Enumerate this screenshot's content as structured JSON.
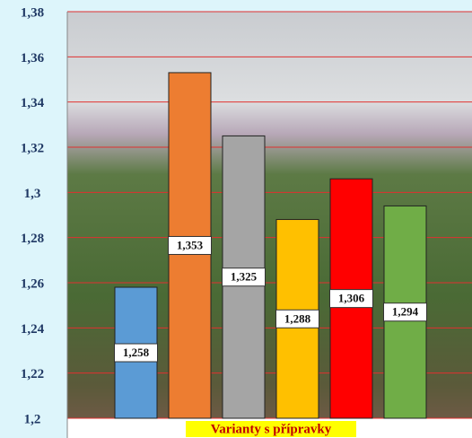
{
  "chart_data": {
    "type": "bar",
    "x_label": "Varianty s přípravky",
    "values": [
      1.258,
      1.353,
      1.325,
      1.288,
      1.306,
      1.294
    ],
    "value_labels": [
      "1,258",
      "1,353",
      "1,325",
      "1,288",
      "1,306",
      "1,294"
    ],
    "colors": [
      "#5b9bd5",
      "#ed7d31",
      "#a5a5a5",
      "#ffc000",
      "#ff0000",
      "#70ad47"
    ],
    "ylim": [
      1.2,
      1.38
    ],
    "yticks": [
      {
        "value": 1.2,
        "label": "1,2"
      },
      {
        "value": 1.22,
        "label": "1,22"
      },
      {
        "value": 1.24,
        "label": "1,24"
      },
      {
        "value": 1.26,
        "label": "1,26"
      },
      {
        "value": 1.28,
        "label": "1,28"
      },
      {
        "value": 1.3,
        "label": "1,3"
      },
      {
        "value": 1.32,
        "label": "1,32"
      },
      {
        "value": 1.34,
        "label": "1,34"
      },
      {
        "value": 1.36,
        "label": "1,36"
      },
      {
        "value": 1.38,
        "label": "1,38"
      }
    ],
    "grid": true,
    "grid_color": "#e03030"
  }
}
